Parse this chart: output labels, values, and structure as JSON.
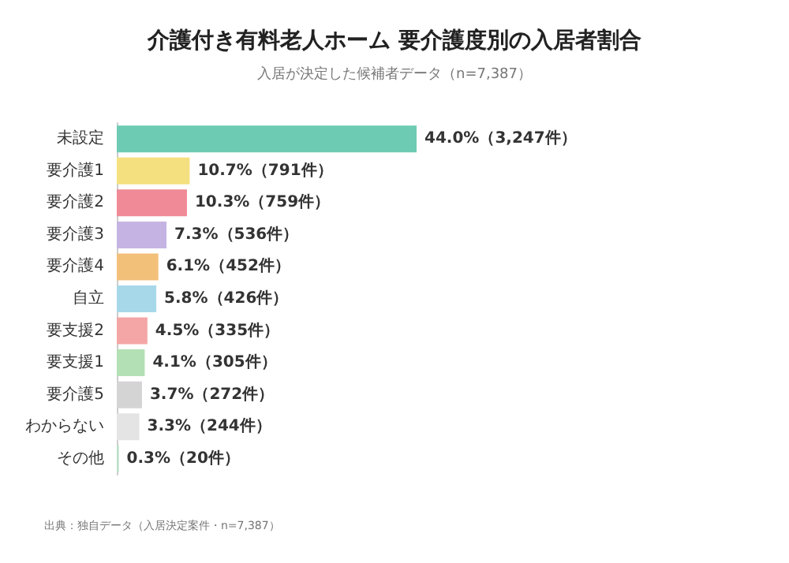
{
  "chart_data": {
    "type": "bar",
    "orientation": "horizontal",
    "title": "介護付き有料老人ホーム 要介護度別の入居者割合",
    "subtitle": "入居が決定した候補者データ（n=7,387）",
    "categories": [
      "未設定",
      "要介護1",
      "要介護2",
      "要介護3",
      "要介護4",
      "自立",
      "要支援2",
      "要支援1",
      "要介護5",
      "わからない",
      "その他"
    ],
    "values": [
      44.0,
      10.7,
      10.3,
      7.3,
      6.1,
      5.8,
      4.5,
      4.1,
      3.7,
      3.3,
      0.3
    ],
    "colors": [
      "#6dcbb3",
      "#f4e07e",
      "#f08a96",
      "#c5b4e3",
      "#f3c07a",
      "#a7d8ea",
      "#f4a6a6",
      "#b3e0b4",
      "#d4d4d4",
      "#e4e4e4",
      "#b9dfc9"
    ],
    "value_labels": [
      "44.0%（3,247件）",
      "10.7%（791件）",
      "10.3%（759件）",
      "7.3%（536件）",
      "6.1%（452件）",
      "5.8%（426件）",
      "4.5%（335件）",
      "4.1%（305件）",
      "3.7%（272件）",
      "3.3%（244件）",
      "0.3%（20件）"
    ],
    "annotations": [
      "出典：独自データ（入居決定案件・n=7,387）"
    ]
  }
}
